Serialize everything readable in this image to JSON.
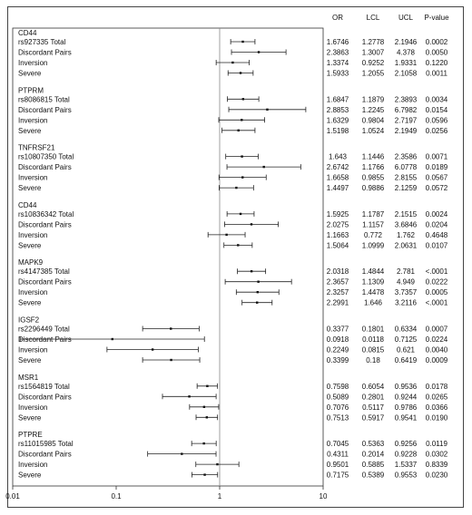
{
  "chart_data": {
    "type": "forest",
    "xscale": "log",
    "xlim": [
      0.01,
      10
    ],
    "xticks": [
      0.01,
      0.1,
      1,
      10
    ],
    "xtick_labels": [
      "0.01",
      "0.1",
      "1",
      "10"
    ],
    "reference_line": 1,
    "columns": [
      "OR",
      "LCL",
      "UCL",
      "P-value"
    ],
    "groups": [
      {
        "name": "CD44",
        "rows": [
          {
            "label": "rs927335 Total",
            "or": 1.6746,
            "lcl": 1.2778,
            "ucl": 2.1946,
            "p": "0.0002",
            "or_text": "1.6746",
            "lcl_text": "1.2778",
            "ucl_text": "2.1946"
          },
          {
            "label": "Discordant Pairs",
            "or": 2.3863,
            "lcl": 1.3007,
            "ucl": 4.378,
            "p": "0.0050",
            "or_text": "2.3863",
            "lcl_text": "1.3007",
            "ucl_text": "4.378"
          },
          {
            "label": "Inversion",
            "or": 1.3374,
            "lcl": 0.9252,
            "ucl": 1.9331,
            "p": "0.1220",
            "or_text": "1.3374",
            "lcl_text": "0.9252",
            "ucl_text": "1.9331"
          },
          {
            "label": "Severe",
            "or": 1.5933,
            "lcl": 1.2055,
            "ucl": 2.1058,
            "p": "0.0011",
            "or_text": "1.5933",
            "lcl_text": "1.2055",
            "ucl_text": "2.1058"
          }
        ]
      },
      {
        "name": "PTPRM",
        "rows": [
          {
            "label": "rs8086815 Total",
            "or": 1.6847,
            "lcl": 1.1879,
            "ucl": 2.3893,
            "p": "0.0034",
            "or_text": "1.6847",
            "lcl_text": "1.1879",
            "ucl_text": "2.3893"
          },
          {
            "label": "Discordant Pairs",
            "or": 2.8853,
            "lcl": 1.2245,
            "ucl": 6.7982,
            "p": "0.0154",
            "or_text": "2.8853",
            "lcl_text": "1.2245",
            "ucl_text": "6.7982"
          },
          {
            "label": "Inversion",
            "or": 1.6329,
            "lcl": 0.9804,
            "ucl": 2.7197,
            "p": "0.0596",
            "or_text": "1.6329",
            "lcl_text": "0.9804",
            "ucl_text": "2.7197"
          },
          {
            "label": "Severe",
            "or": 1.5198,
            "lcl": 1.0524,
            "ucl": 2.1949,
            "p": "0.0256",
            "or_text": "1.5198",
            "lcl_text": "1.0524",
            "ucl_text": "2.1949"
          }
        ]
      },
      {
        "name": "TNFRSF21",
        "rows": [
          {
            "label": "rs10807350 Total",
            "or": 1.643,
            "lcl": 1.1446,
            "ucl": 2.3586,
            "p": "0.0071",
            "or_text": "1.643",
            "lcl_text": "1.1446",
            "ucl_text": "2.3586"
          },
          {
            "label": "Discordant Pairs",
            "or": 2.6742,
            "lcl": 1.1766,
            "ucl": 6.0778,
            "p": "0.0189",
            "or_text": "2.6742",
            "lcl_text": "1.1766",
            "ucl_text": "6.0778"
          },
          {
            "label": "Inversion",
            "or": 1.6658,
            "lcl": 0.9855,
            "ucl": 2.8155,
            "p": "0.0567",
            "or_text": "1.6658",
            "lcl_text": "0.9855",
            "ucl_text": "2.8155"
          },
          {
            "label": "Severe",
            "or": 1.4497,
            "lcl": 0.9886,
            "ucl": 2.1259,
            "p": "0.0572",
            "or_text": "1.4497",
            "lcl_text": "0.9886",
            "ucl_text": "2.1259"
          }
        ]
      },
      {
        "name": "CD44",
        "rows": [
          {
            "label": "rs10836342 Total",
            "or": 1.5925,
            "lcl": 1.1787,
            "ucl": 2.1515,
            "p": "0.0024",
            "or_text": "1.5925",
            "lcl_text": "1.1787",
            "ucl_text": "2.1515"
          },
          {
            "label": "Discordant Pairs",
            "or": 2.0275,
            "lcl": 1.1157,
            "ucl": 3.6846,
            "p": "0.0204",
            "or_text": "2.0275",
            "lcl_text": "1.1157",
            "ucl_text": "3.6846"
          },
          {
            "label": "Inversion",
            "or": 1.1663,
            "lcl": 0.772,
            "ucl": 1.762,
            "p": "0.4648",
            "or_text": "1.1663",
            "lcl_text": "0.772",
            "ucl_text": "1.762"
          },
          {
            "label": "Severe",
            "or": 1.5064,
            "lcl": 1.0999,
            "ucl": 2.0631,
            "p": "0.0107",
            "or_text": "1.5064",
            "lcl_text": "1.0999",
            "ucl_text": "2.0631"
          }
        ]
      },
      {
        "name": "MAPK9",
        "rows": [
          {
            "label": "rs4147385 Total",
            "or": 2.0318,
            "lcl": 1.4844,
            "ucl": 2.781,
            "p": "<.0001",
            "or_text": "2.0318",
            "lcl_text": "1.4844",
            "ucl_text": "2.781"
          },
          {
            "label": "Discordant Pairs",
            "or": 2.3657,
            "lcl": 1.1309,
            "ucl": 4.949,
            "p": "0.0222",
            "or_text": "2.3657",
            "lcl_text": "1.1309",
            "ucl_text": "4.949"
          },
          {
            "label": "Inversion",
            "or": 2.3257,
            "lcl": 1.4478,
            "ucl": 3.7357,
            "p": "0.0005",
            "or_text": "2.3257",
            "lcl_text": "1.4478",
            "ucl_text": "3.7357"
          },
          {
            "label": "Severe",
            "or": 2.2991,
            "lcl": 1.646,
            "ucl": 3.2116,
            "p": "<.0001",
            "or_text": "2.2991",
            "lcl_text": "1.646",
            "ucl_text": "3.2116"
          }
        ]
      },
      {
        "name": "IGSF2",
        "rows": [
          {
            "label": "rs2296449 Total",
            "or": 0.3377,
            "lcl": 0.1801,
            "ucl": 0.6334,
            "p": "0.0007",
            "or_text": "0.3377",
            "lcl_text": "0.1801",
            "ucl_text": "0.6334"
          },
          {
            "label": "Discordant Pairs",
            "or": 0.0918,
            "lcl": 0.0118,
            "ucl": 0.7125,
            "p": "0.0224",
            "or_text": "0.0918",
            "lcl_text": "0.0118",
            "ucl_text": "0.7125"
          },
          {
            "label": "Inversion",
            "or": 0.2249,
            "lcl": 0.0815,
            "ucl": 0.621,
            "p": "0.0040",
            "or_text": "0.2249",
            "lcl_text": "0.0815",
            "ucl_text": "0.621"
          },
          {
            "label": "Severe",
            "or": 0.3399,
            "lcl": 0.18,
            "ucl": 0.6419,
            "p": "0.0009",
            "or_text": "0.3399",
            "lcl_text": "0.18",
            "ucl_text": "0.6419"
          }
        ]
      },
      {
        "name": "MSR1",
        "rows": [
          {
            "label": "rs1564819 Total",
            "or": 0.7598,
            "lcl": 0.6054,
            "ucl": 0.9536,
            "p": "0.0178",
            "or_text": "0.7598",
            "lcl_text": "0.6054",
            "ucl_text": "0.9536"
          },
          {
            "label": "Discordant Pairs",
            "or": 0.5089,
            "lcl": 0.2801,
            "ucl": 0.9244,
            "p": "0.0265",
            "or_text": "0.5089",
            "lcl_text": "0.2801",
            "ucl_text": "0.9244"
          },
          {
            "label": "Inversion",
            "or": 0.7076,
            "lcl": 0.5117,
            "ucl": 0.9786,
            "p": "0.0366",
            "or_text": "0.7076",
            "lcl_text": "0.5117",
            "ucl_text": "0.9786"
          },
          {
            "label": "Severe",
            "or": 0.7513,
            "lcl": 0.5917,
            "ucl": 0.9541,
            "p": "0.0190",
            "or_text": "0.7513",
            "lcl_text": "0.5917",
            "ucl_text": "0.9541"
          }
        ]
      },
      {
        "name": "PTPRE",
        "rows": [
          {
            "label": "rs11015985 Total",
            "or": 0.7045,
            "lcl": 0.5363,
            "ucl": 0.9256,
            "p": "0.0119",
            "or_text": "0.7045",
            "lcl_text": "0.5363",
            "ucl_text": "0.9256"
          },
          {
            "label": "Discordant Pairs",
            "or": 0.4311,
            "lcl": 0.2014,
            "ucl": 0.9228,
            "p": "0.0302",
            "or_text": "0.4311",
            "lcl_text": "0.2014",
            "ucl_text": "0.9228"
          },
          {
            "label": "Inversion",
            "or": 0.9501,
            "lcl": 0.5885,
            "ucl": 1.5337,
            "p": "0.8339",
            "or_text": "0.9501",
            "lcl_text": "0.5885",
            "ucl_text": "1.5337"
          },
          {
            "label": "Severe",
            "or": 0.7175,
            "lcl": 0.5389,
            "ucl": 0.9553,
            "p": "0.0230",
            "or_text": "0.7175",
            "lcl_text": "0.5389",
            "ucl_text": "0.9553"
          }
        ]
      }
    ]
  }
}
